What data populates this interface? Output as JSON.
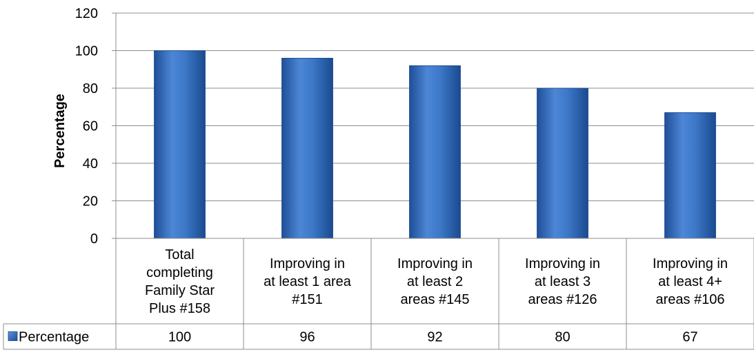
{
  "chart_data": {
    "type": "bar",
    "ylabel": "Percentage",
    "ylim": [
      0,
      120
    ],
    "yticks": [
      0,
      20,
      40,
      60,
      80,
      100,
      120
    ],
    "grid": true,
    "categories": [
      [
        "Total",
        "completing",
        "Family Star",
        "Plus #158"
      ],
      [
        "Improving in",
        "at least 1 area",
        "#151"
      ],
      [
        "Improving in",
        "at least 2",
        "areas #145"
      ],
      [
        "Improving in",
        "at least 3",
        "areas #126"
      ],
      [
        "Improving in",
        "at least 4+",
        "areas #106"
      ]
    ],
    "series": [
      {
        "name": "Percentage",
        "values": [
          100,
          96,
          92,
          80,
          67
        ]
      }
    ],
    "data_table": true,
    "colors": {
      "bar": "#3a74c4",
      "bar_dark": "#1c4f9a",
      "bar_light": "#5d93dc",
      "grid": "#8c8c8c",
      "border": "#8c8c8c"
    }
  }
}
